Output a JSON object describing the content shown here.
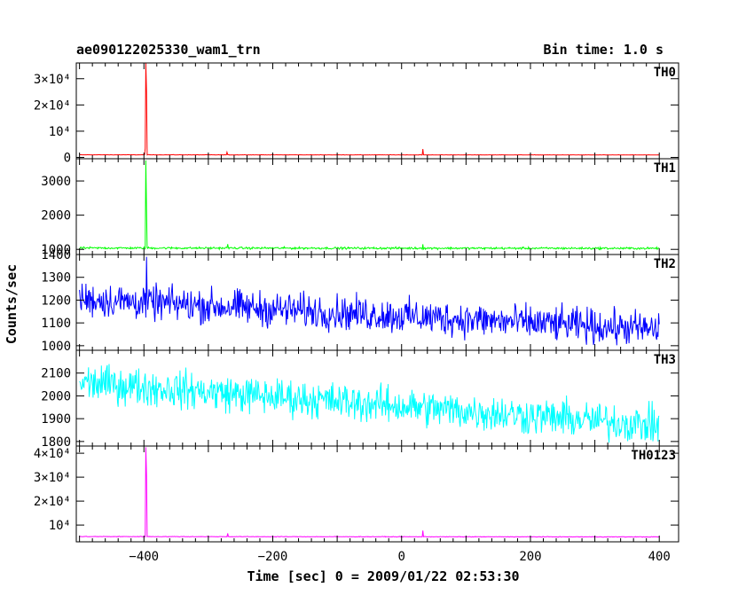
{
  "header": {
    "title": "ae090122025330_wam1_trn",
    "bin_time": "Bin time: 1.0 s"
  },
  "chart_data": {
    "type": "line",
    "xlabel": "Time [sec] 0 = 2009/01/22 02:53:30",
    "ylabel": "Counts/sec",
    "xlim": [
      -505,
      430
    ],
    "xticks": [
      -400,
      -200,
      0,
      200,
      400
    ],
    "xtick_labels": [
      "−400",
      "−200",
      "0",
      "200",
      "400"
    ],
    "panels": [
      {
        "name": "TH0",
        "color": "#ff0000",
        "ylim": [
          -500,
          36000
        ],
        "yticks": [
          {
            "value": 0,
            "label": "0"
          },
          {
            "value": 10000,
            "label": "10⁴"
          },
          {
            "value": 20000,
            "label": "2×10⁴"
          },
          {
            "value": 30000,
            "label": "3×10⁴"
          }
        ],
        "baseline_start": 1000,
        "baseline_end": 950,
        "noise": 60,
        "spikes": [
          {
            "t": -397,
            "v": 36000
          },
          {
            "t": -396,
            "v": 25000
          },
          {
            "t": -398,
            "v": 3500
          },
          {
            "t": -271,
            "v": 2000
          },
          {
            "t": 33,
            "v": 3200
          }
        ]
      },
      {
        "name": "TH1",
        "color": "#00ff00",
        "ylim": [
          850,
          3650
        ],
        "yticks": [
          {
            "value": 1000,
            "label": "1000"
          },
          {
            "value": 2000,
            "label": "2000"
          },
          {
            "value": 3000,
            "label": "3000"
          }
        ],
        "baseline_start": 1040,
        "baseline_end": 1030,
        "noise": 30,
        "spikes": [
          {
            "t": -397,
            "v": 3600
          },
          {
            "t": -396,
            "v": 2150
          },
          {
            "t": -270,
            "v": 1150
          },
          {
            "t": 33,
            "v": 1150
          }
        ]
      },
      {
        "name": "TH2",
        "color": "#0000ff",
        "ylim": [
          980,
          1400
        ],
        "yticks": [
          {
            "value": 1000,
            "label": "1000"
          },
          {
            "value": 1100,
            "label": "1100"
          },
          {
            "value": 1200,
            "label": "1200"
          },
          {
            "value": 1300,
            "label": "1300"
          },
          {
            "value": 1400,
            "label": "1400"
          }
        ],
        "baseline_start": 1205,
        "baseline_end": 1070,
        "noise": 75,
        "spikes": [
          {
            "t": -396,
            "v": 1390
          }
        ]
      },
      {
        "name": "TH3",
        "color": "#00ffff",
        "ylim": [
          1780,
          2200
        ],
        "yticks": [
          {
            "value": 1800,
            "label": "1800"
          },
          {
            "value": 1900,
            "label": "1900"
          },
          {
            "value": 2000,
            "label": "2000"
          },
          {
            "value": 2100,
            "label": "2100"
          }
        ],
        "baseline_start": 2060,
        "baseline_end": 1870,
        "noise": 80,
        "spikes": []
      },
      {
        "name": "TH0123",
        "color": "#ff00ff",
        "ylim": [
          3000,
          43000
        ],
        "yticks": [
          {
            "value": 10000,
            "label": "10⁴"
          },
          {
            "value": 20000,
            "label": "2×10⁴"
          },
          {
            "value": 30000,
            "label": "3×10⁴"
          },
          {
            "value": 40000,
            "label": "4×10⁴"
          }
        ],
        "baseline_start": 5200,
        "baseline_end": 5050,
        "noise": 120,
        "spikes": [
          {
            "t": -397,
            "v": 42500
          },
          {
            "t": -396,
            "v": 30500
          },
          {
            "t": -270,
            "v": 6500
          },
          {
            "t": 33,
            "v": 7700
          }
        ]
      }
    ]
  }
}
